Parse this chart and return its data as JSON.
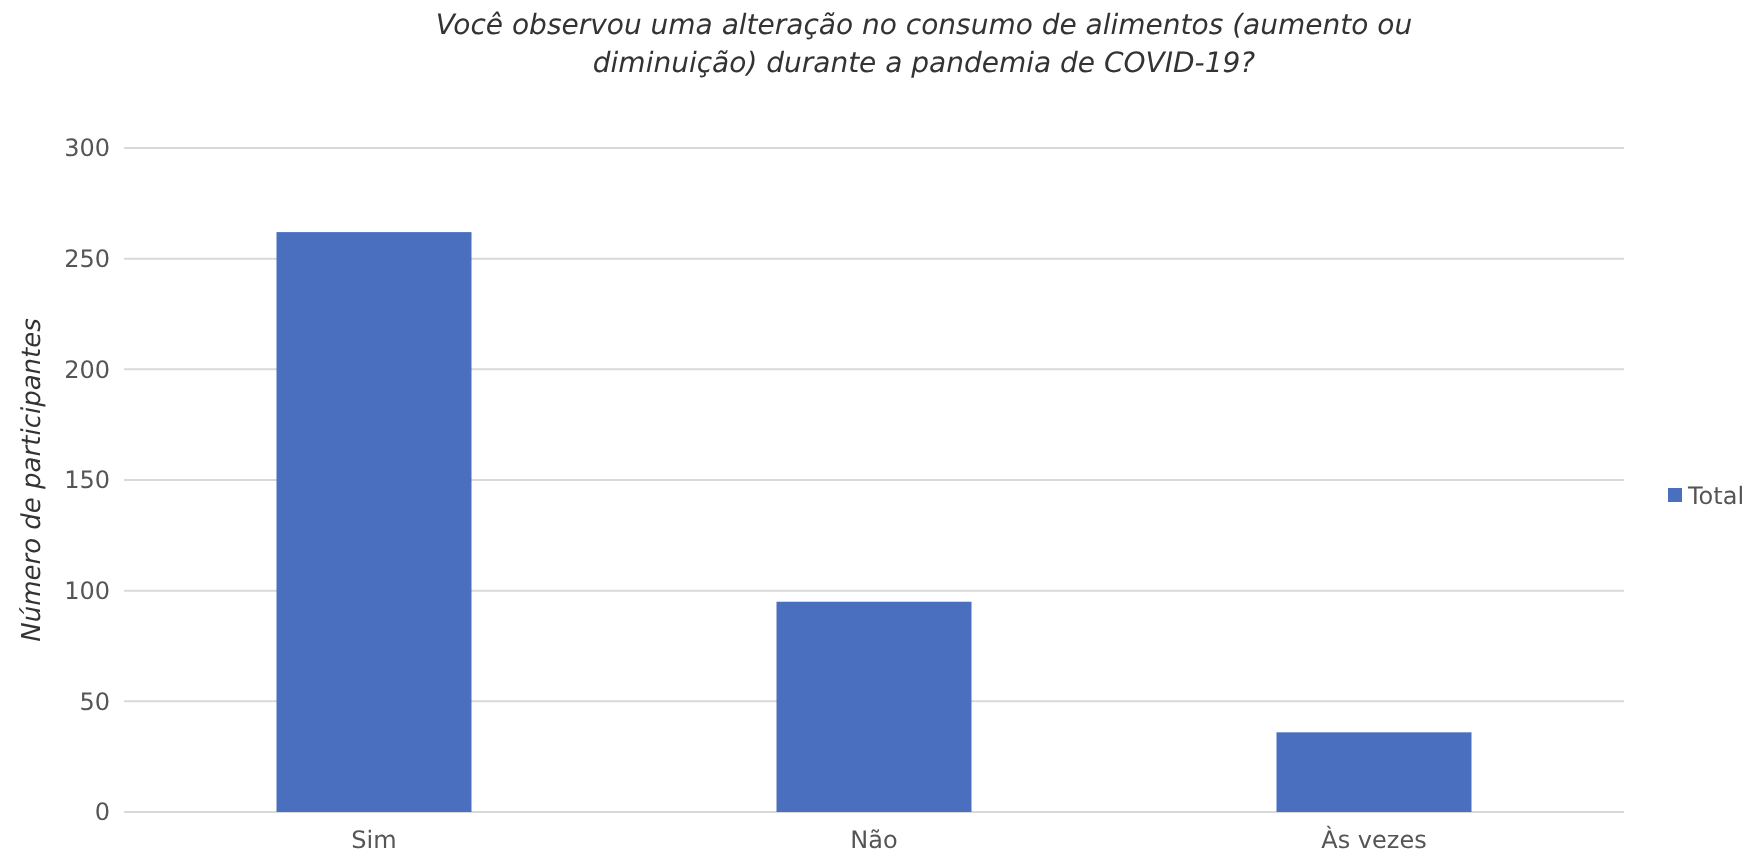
{
  "chart_data": {
    "type": "bar",
    "title": "Você observou uma alteração no consumo de alimentos (aumento ou diminuição) durante a pandemia de COVID-19?",
    "ylabel": "Número de participantes",
    "categories": [
      "Sim",
      "Não",
      "Às vezes"
    ],
    "series": [
      {
        "name": "Total",
        "color": "#4a6fbf",
        "values": [
          262,
          95,
          36
        ]
      }
    ],
    "ylim": [
      0,
      300
    ],
    "yticks": [
      0,
      50,
      100,
      150,
      200,
      250,
      300
    ],
    "grid": "y",
    "legend": "right"
  }
}
